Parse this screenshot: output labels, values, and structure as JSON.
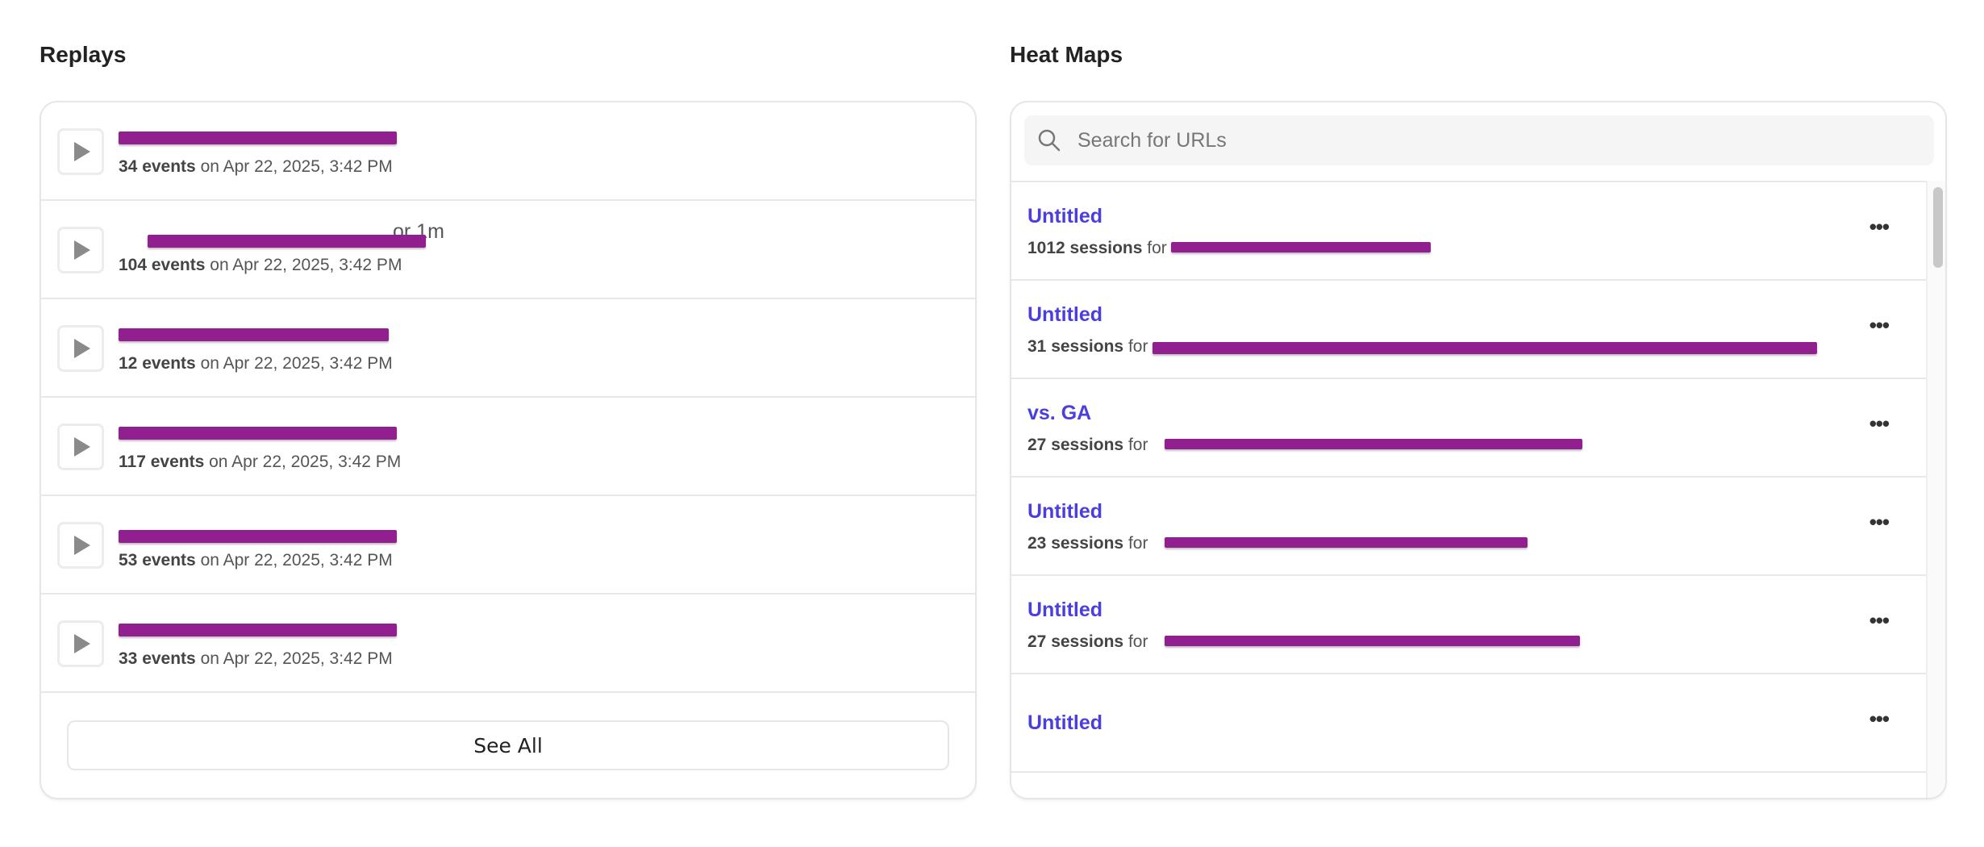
{
  "replays": {
    "title": "Replays",
    "rows": [
      {
        "events": "34 events",
        "date": "on Apr 22, 2025, 3:42 PM",
        "visible_suffix": ""
      },
      {
        "events": "104 events",
        "date": "on Apr 22, 2025, 3:42 PM",
        "visible_suffix": "or 1m"
      },
      {
        "events": "12 events",
        "date": "on Apr 22, 2025, 3:42 PM",
        "visible_suffix": ""
      },
      {
        "events": "117 events",
        "date": "on Apr 22, 2025, 3:42 PM",
        "visible_suffix": ""
      },
      {
        "events": "53 events",
        "date": "on Apr 22, 2025, 3:42 PM",
        "visible_suffix": ""
      },
      {
        "events": "33 events",
        "date": "on Apr 22, 2025, 3:42 PM",
        "visible_suffix": ""
      }
    ],
    "see_all_label": "See All"
  },
  "heatmaps": {
    "title": "Heat Maps",
    "search_placeholder": "Search for URLs",
    "rows": [
      {
        "title": "Untitled",
        "sessions": "1012 sessions",
        "for": "for"
      },
      {
        "title": "Untitled",
        "sessions": "31 sessions",
        "for": "for"
      },
      {
        "title": "vs. GA",
        "sessions": "27 sessions",
        "for": "for"
      },
      {
        "title": "Untitled",
        "sessions": "23 sessions",
        "for": "for"
      },
      {
        "title": "Untitled",
        "sessions": "27 sessions",
        "for": "for"
      },
      {
        "title": "Untitled",
        "sessions": "",
        "for": ""
      }
    ],
    "more_label": "•••"
  },
  "colors": {
    "link": "#4a3ee0",
    "redaction": "#921f8f"
  }
}
